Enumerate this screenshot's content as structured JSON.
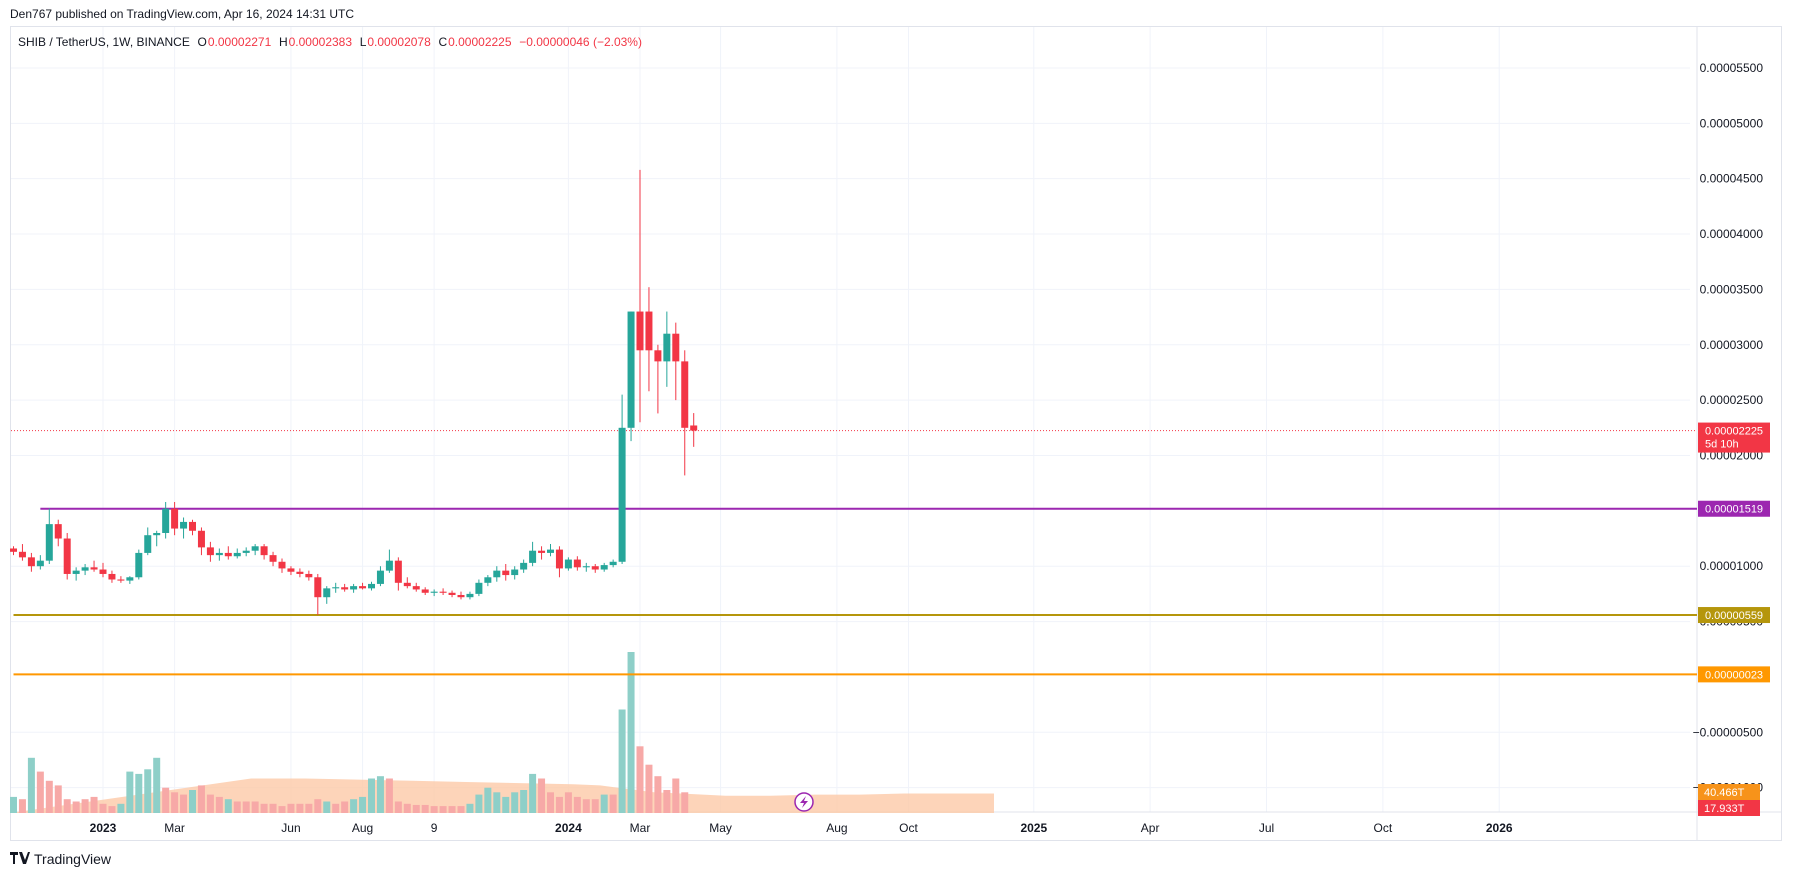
{
  "publisher": "Den767 published on TradingView.com, Apr 16, 2024 14:31 UTC",
  "legend": {
    "symbol": "SHIB / TetherUS, 1W, BINANCE",
    "o_label": "O",
    "o": "0.00002271",
    "h_label": "H",
    "h": "0.00002383",
    "l_label": "L",
    "l": "0.00002078",
    "c_label": "C",
    "c": "0.00002225",
    "change": "−0.00000046 (−2.03%)"
  },
  "footer": {
    "brand": "TradingView",
    "logo": "tv-logo-icon"
  },
  "colors": {
    "up": "#26a69a",
    "down": "#f23645",
    "line_purple": "#9c27b0",
    "line_gold": "#b5960c",
    "line_orange": "#ff9800",
    "grid": "#f0f3fa",
    "vol_up": "#8ecfc8",
    "vol_down": "#f7a9a7",
    "vol_ma": "#fcc9a8"
  },
  "chart_data": {
    "type": "candlestick",
    "price_axis": {
      "ticks": [
        5.5e-05,
        5e-05,
        4.5e-05,
        4e-05,
        3.5e-05,
        3e-05,
        2.5e-05,
        2e-05,
        1e-05,
        5e-06,
        -5e-06,
        -1e-05
      ],
      "tick_labels": [
        "0.00005500",
        "0.00005000",
        "0.00004500",
        "0.00004000",
        "0.00003500",
        "0.00003000",
        "0.00002500",
        "0.00002000",
        "0.00001000",
        "0.00000500",
        "−0.00000500",
        "−0.00001000"
      ],
      "range": [
        -1.22e-05,
        5.87e-05
      ]
    },
    "time_axis": {
      "labels": [
        {
          "text": "2023",
          "week": 10,
          "bold": true
        },
        {
          "text": "Mar",
          "week": 18,
          "bold": false
        },
        {
          "text": "Jun",
          "week": 31,
          "bold": false
        },
        {
          "text": "Aug",
          "week": 39,
          "bold": false
        },
        {
          "text": "9",
          "week": 47,
          "bold": false
        },
        {
          "text": "2024",
          "week": 62,
          "bold": true
        },
        {
          "text": "Mar",
          "week": 70,
          "bold": false
        },
        {
          "text": "May",
          "week": 79,
          "bold": false
        },
        {
          "text": "Aug",
          "week": 92,
          "bold": false
        },
        {
          "text": "Oct",
          "week": 100,
          "bold": false
        },
        {
          "text": "2025",
          "week": 114,
          "bold": true
        },
        {
          "text": "Apr",
          "week": 127,
          "bold": false
        },
        {
          "text": "Jul",
          "week": 140,
          "bold": false
        },
        {
          "text": "Oct",
          "week": 153,
          "bold": false
        },
        {
          "text": "2026",
          "week": 166,
          "bold": true
        }
      ]
    },
    "horizontal_lines": [
      {
        "value": 1.519e-05,
        "label": "0.00001519",
        "color": "#9c27b0",
        "start_week": 3
      },
      {
        "value": 5.59e-06,
        "label": "0.00000559",
        "color": "#b5960c",
        "start_week": 0
      },
      {
        "value": 2.3e-07,
        "label": "0.00000023",
        "color": "#ff9800",
        "start_week": 0
      }
    ],
    "last_price": {
      "value": 2.225e-05,
      "label": "0.00002225",
      "countdown": "5d 10h"
    },
    "volume_labels": [
      {
        "text": "40.466T",
        "color": "#f7931a"
      },
      {
        "text": "17.933T",
        "color": "#f23645"
      }
    ],
    "candles": [
      [
        1.16,
        1.18,
        1.1,
        1.13
      ],
      [
        1.13,
        1.2,
        1.05,
        1.08
      ],
      [
        1.08,
        1.12,
        0.95,
        1.0
      ],
      [
        1.0,
        1.1,
        0.97,
        1.05
      ],
      [
        1.05,
        1.52,
        1.02,
        1.38
      ],
      [
        1.38,
        1.42,
        1.18,
        1.25
      ],
      [
        1.25,
        1.3,
        0.88,
        0.93
      ],
      [
        0.93,
        0.99,
        0.87,
        0.96
      ],
      [
        0.96,
        1.02,
        0.92,
        0.99
      ],
      [
        0.99,
        1.05,
        0.95,
        0.97
      ],
      [
        0.97,
        1.03,
        0.9,
        0.93
      ],
      [
        0.93,
        0.96,
        0.85,
        0.88
      ],
      [
        0.88,
        0.91,
        0.85,
        0.87
      ],
      [
        0.87,
        0.91,
        0.84,
        0.9
      ],
      [
        0.9,
        1.15,
        0.88,
        1.12
      ],
      [
        1.12,
        1.35,
        1.1,
        1.28
      ],
      [
        1.28,
        1.32,
        1.18,
        1.3
      ],
      [
        1.3,
        1.58,
        1.25,
        1.52
      ],
      [
        1.52,
        1.58,
        1.28,
        1.34
      ],
      [
        1.34,
        1.44,
        1.25,
        1.4
      ],
      [
        1.4,
        1.42,
        1.28,
        1.32
      ],
      [
        1.32,
        1.35,
        1.1,
        1.17
      ],
      [
        1.17,
        1.22,
        1.04,
        1.1
      ],
      [
        1.1,
        1.16,
        1.05,
        1.12
      ],
      [
        1.12,
        1.18,
        1.06,
        1.09
      ],
      [
        1.09,
        1.16,
        1.07,
        1.12
      ],
      [
        1.12,
        1.17,
        1.09,
        1.14
      ],
      [
        1.14,
        1.2,
        1.1,
        1.18
      ],
      [
        1.18,
        1.2,
        1.06,
        1.1
      ],
      [
        1.1,
        1.13,
        1.0,
        1.04
      ],
      [
        1.04,
        1.07,
        0.94,
        0.98
      ],
      [
        0.98,
        1.0,
        0.92,
        0.95
      ],
      [
        0.95,
        0.98,
        0.9,
        0.93
      ],
      [
        0.93,
        0.96,
        0.87,
        0.9
      ],
      [
        0.9,
        0.93,
        0.56,
        0.72
      ],
      [
        0.72,
        0.82,
        0.66,
        0.8
      ],
      [
        0.8,
        0.85,
        0.76,
        0.81
      ],
      [
        0.81,
        0.84,
        0.77,
        0.79
      ],
      [
        0.79,
        0.84,
        0.76,
        0.82
      ],
      [
        0.82,
        0.85,
        0.79,
        0.8
      ],
      [
        0.8,
        0.86,
        0.78,
        0.84
      ],
      [
        0.84,
        1.0,
        0.82,
        0.96
      ],
      [
        0.96,
        1.15,
        0.94,
        1.05
      ],
      [
        1.05,
        1.08,
        0.78,
        0.85
      ],
      [
        0.85,
        0.9,
        0.8,
        0.82
      ],
      [
        0.82,
        0.85,
        0.77,
        0.79
      ],
      [
        0.79,
        0.81,
        0.74,
        0.76
      ],
      [
        0.76,
        0.79,
        0.73,
        0.77
      ],
      [
        0.77,
        0.8,
        0.74,
        0.76
      ],
      [
        0.76,
        0.78,
        0.72,
        0.74
      ],
      [
        0.74,
        0.77,
        0.7,
        0.72
      ],
      [
        0.72,
        0.77,
        0.7,
        0.75
      ],
      [
        0.75,
        0.88,
        0.73,
        0.85
      ],
      [
        0.85,
        0.92,
        0.82,
        0.9
      ],
      [
        0.9,
        1.0,
        0.86,
        0.96
      ],
      [
        0.96,
        1.02,
        0.87,
        0.92
      ],
      [
        0.92,
        1.0,
        0.88,
        0.97
      ],
      [
        0.97,
        1.06,
        0.94,
        1.03
      ],
      [
        1.03,
        1.22,
        1.0,
        1.14
      ],
      [
        1.14,
        1.18,
        1.06,
        1.12
      ],
      [
        1.12,
        1.2,
        1.09,
        1.15
      ],
      [
        1.15,
        1.18,
        0.9,
        0.98
      ],
      [
        0.98,
        1.08,
        0.96,
        1.06
      ],
      [
        1.06,
        1.09,
        0.96,
        0.99
      ],
      [
        0.99,
        1.03,
        0.95,
        1.0
      ],
      [
        1.0,
        1.02,
        0.94,
        0.97
      ],
      [
        0.97,
        1.03,
        0.95,
        1.01
      ],
      [
        1.01,
        1.06,
        0.99,
        1.04
      ],
      [
        1.04,
        2.55,
        1.02,
        2.25
      ],
      [
        2.25,
        3.3,
        2.13,
        3.3
      ],
      [
        3.3,
        4.58,
        2.3,
        2.95
      ],
      [
        3.3,
        3.52,
        2.58,
        2.95
      ],
      [
        2.95,
        3.0,
        2.38,
        2.85
      ],
      [
        2.85,
        3.3,
        2.62,
        3.1
      ],
      [
        3.1,
        3.2,
        2.5,
        2.85
      ],
      [
        2.85,
        2.95,
        1.82,
        2.25
      ],
      [
        2.271,
        2.383,
        2.078,
        2.225
      ]
    ],
    "candle_scale": "1e-5",
    "volume": [
      [
        14,
        1
      ],
      [
        12,
        0
      ],
      [
        48,
        1
      ],
      [
        36,
        0
      ],
      [
        28,
        0
      ],
      [
        24,
        0
      ],
      [
        12,
        0
      ],
      [
        10,
        0
      ],
      [
        12,
        0
      ],
      [
        14,
        0
      ],
      [
        8,
        0
      ],
      [
        6,
        0
      ],
      [
        8,
        1
      ],
      [
        36,
        1
      ],
      [
        34,
        1
      ],
      [
        38,
        1
      ],
      [
        48,
        1
      ],
      [
        22,
        0
      ],
      [
        18,
        0
      ],
      [
        16,
        0
      ],
      [
        20,
        1
      ],
      [
        24,
        0
      ],
      [
        16,
        0
      ],
      [
        14,
        0
      ],
      [
        12,
        1
      ],
      [
        10,
        0
      ],
      [
        10,
        0
      ],
      [
        10,
        0
      ],
      [
        8,
        0
      ],
      [
        8,
        0
      ],
      [
        6,
        0
      ],
      [
        8,
        0
      ],
      [
        8,
        0
      ],
      [
        8,
        0
      ],
      [
        12,
        0
      ],
      [
        10,
        1
      ],
      [
        8,
        0
      ],
      [
        10,
        0
      ],
      [
        12,
        1
      ],
      [
        14,
        1
      ],
      [
        30,
        1
      ],
      [
        32,
        1
      ],
      [
        30,
        0
      ],
      [
        10,
        0
      ],
      [
        8,
        0
      ],
      [
        7,
        0
      ],
      [
        7,
        0
      ],
      [
        6,
        0
      ],
      [
        6,
        0
      ],
      [
        6,
        0
      ],
      [
        6,
        0
      ],
      [
        8,
        1
      ],
      [
        16,
        1
      ],
      [
        22,
        1
      ],
      [
        18,
        1
      ],
      [
        14,
        1
      ],
      [
        18,
        1
      ],
      [
        20,
        1
      ],
      [
        34,
        1
      ],
      [
        30,
        0
      ],
      [
        18,
        0
      ],
      [
        14,
        0
      ],
      [
        18,
        0
      ],
      [
        14,
        0
      ],
      [
        12,
        0
      ],
      [
        12,
        0
      ],
      [
        16,
        1
      ],
      [
        16,
        0
      ],
      [
        90,
        1
      ],
      [
        140,
        1
      ],
      [
        58,
        0
      ],
      [
        42,
        0
      ],
      [
        32,
        0
      ],
      [
        20,
        0
      ],
      [
        30,
        0
      ],
      [
        18,
        0
      ]
    ],
    "volume_ma": [
      [
        0,
        0
      ],
      [
        27,
        30
      ],
      [
        33,
        30
      ],
      [
        39,
        29
      ],
      [
        45,
        28
      ],
      [
        51,
        27
      ],
      [
        57,
        26
      ],
      [
        63,
        25
      ],
      [
        66,
        24
      ],
      [
        68,
        22
      ],
      [
        70,
        20
      ],
      [
        72,
        18
      ],
      [
        75,
        17
      ],
      [
        80,
        15
      ],
      [
        85,
        15
      ],
      [
        90,
        16
      ],
      [
        95,
        16
      ],
      [
        100,
        17
      ],
      [
        110,
        17
      ]
    ]
  }
}
